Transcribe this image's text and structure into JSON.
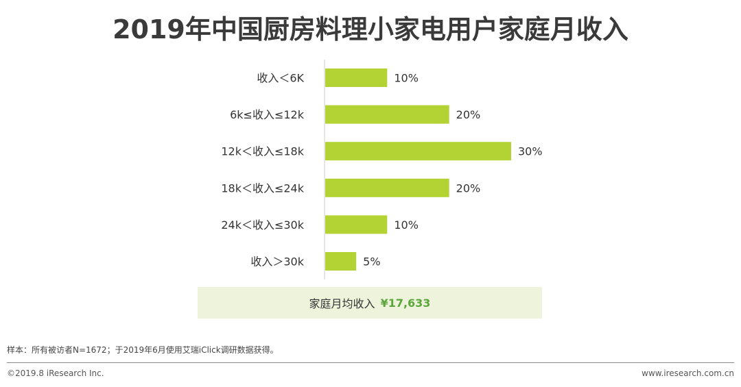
{
  "chart_data": {
    "type": "bar",
    "orientation": "horizontal",
    "title": "2019年中国厨房料理小家电用户家庭月收入",
    "categories": [
      "收入＜6K",
      "6k≤收入≤12k",
      "12k＜收入≤18k",
      "18k＜收入≤24k",
      "24k＜收入≤30k",
      "收入＞30k"
    ],
    "values": [
      10,
      20,
      30,
      20,
      10,
      5
    ],
    "labels": [
      "10%",
      "20%",
      "30%",
      "20%",
      "10%",
      "5%"
    ],
    "unit": "%",
    "xlim": [
      0,
      30
    ],
    "grid": false,
    "bar_color": "#b3d335"
  },
  "summary": {
    "label": "家庭月均收入",
    "value": "¥17,633"
  },
  "note": "样本：所有被访者N=1672；于2019年6月使用艾瑞iClick调研数据获得。",
  "footer": {
    "copyright": "©2019.8 iResearch Inc.",
    "website": "www.iresearch.com.cn"
  }
}
